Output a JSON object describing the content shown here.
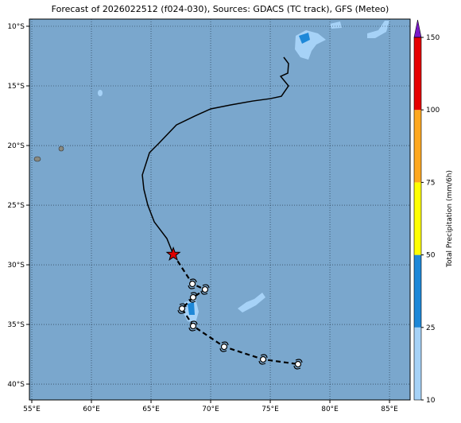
{
  "chart_data": {
    "type": "map",
    "title": "Forecast of 2026022512 (f024-030), Sources: GDACS (TC track), GFS (Meteo)",
    "xlim": [
      54.8,
      86.73
    ],
    "ylim": [
      -41.33,
      -9.4
    ],
    "xticks": [
      {
        "value": 55,
        "label": "55°E"
      },
      {
        "value": 60,
        "label": "60°E"
      },
      {
        "value": 65,
        "label": "65°E"
      },
      {
        "value": 70,
        "label": "70°E"
      },
      {
        "value": 75,
        "label": "75°E"
      },
      {
        "value": 80,
        "label": "80°E"
      },
      {
        "value": 85,
        "label": "85°E"
      }
    ],
    "yticks": [
      {
        "value": -10,
        "label": "10°S"
      },
      {
        "value": -15,
        "label": "15°S"
      },
      {
        "value": -20,
        "label": "20°S"
      },
      {
        "value": -25,
        "label": "25°S"
      },
      {
        "value": -30,
        "label": "30°S"
      },
      {
        "value": -35,
        "label": "35°S"
      },
      {
        "value": -40,
        "label": "40°S"
      }
    ],
    "grid": true,
    "ocean_color": "#7aa7cd",
    "track": {
      "color": "#000000",
      "x": [
        76.13,
        76.53,
        76.47,
        75.87,
        76.53,
        75.93,
        75.0,
        73.53,
        71.67,
        70.0,
        68.67,
        67.13,
        65.67,
        64.87,
        64.27,
        64.4,
        64.73,
        65.27,
        66.33,
        66.87
      ],
      "y": [
        -12.6,
        -13.13,
        -13.93,
        -14.2,
        -15.0,
        -15.87,
        -16.07,
        -16.27,
        -16.6,
        -16.93,
        -17.53,
        -18.27,
        -19.8,
        -20.6,
        -22.47,
        -23.67,
        -25.0,
        -26.4,
        -27.8,
        -29.13
      ]
    },
    "forecast": {
      "color": "#000000",
      "marker_color": "#e00000",
      "x": [
        66.87,
        68.47,
        69.53,
        68.53,
        67.6,
        68.53,
        71.13,
        74.4,
        77.33
      ],
      "y": [
        -29.13,
        -31.6,
        -32.07,
        -32.73,
        -33.67,
        -35.13,
        -36.87,
        -37.93,
        -38.33
      ]
    },
    "colorbar": {
      "label": "Total Precipitation (mm/6h)",
      "ticks": [
        10,
        25,
        50,
        75,
        100,
        150
      ],
      "colors": [
        "#a6d2f7",
        "#1e88d8",
        "#ffff00",
        "#ffa820",
        "#e60000"
      ],
      "extend_color": "#7b19c8"
    }
  }
}
